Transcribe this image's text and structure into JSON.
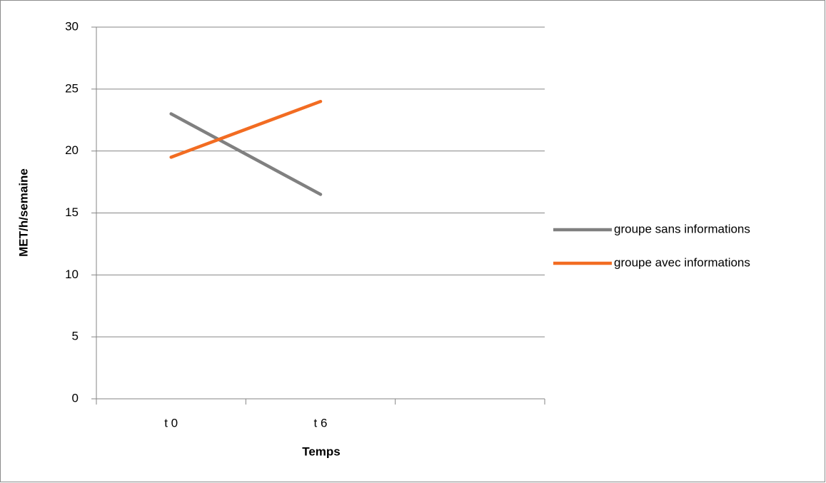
{
  "chart_data": {
    "type": "line",
    "y_label": "MET/h/semaine",
    "x_label": "Temps",
    "categories": [
      "t 0",
      "t 6",
      null
    ],
    "series": [
      {
        "name": "groupe sans informations",
        "color": "#808080",
        "values": [
          23,
          16.5,
          null
        ]
      },
      {
        "name": "groupe avec informations",
        "color": "#f26c22",
        "values": [
          19.5,
          24,
          null
        ]
      }
    ],
    "ylim": [
      0,
      30
    ],
    "yticks": [
      0,
      5,
      10,
      15,
      20,
      25,
      30
    ],
    "grid": true,
    "legend": "right"
  }
}
